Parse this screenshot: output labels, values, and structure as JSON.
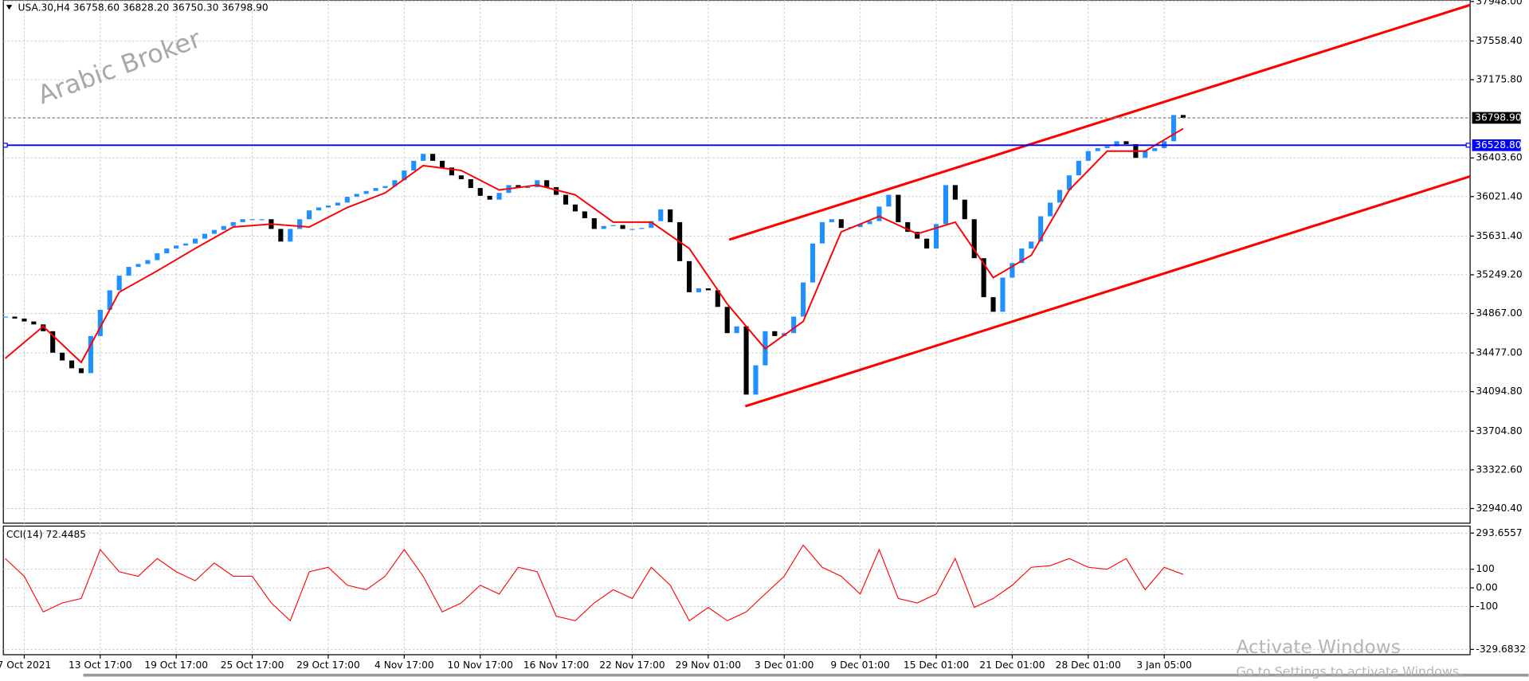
{
  "chart_data": [
    {
      "type": "candlestick",
      "title": "USA.30,H4  36758.60 36828.20 36750.30 36798.90",
      "watermark": "Arabic Broker",
      "categories": [
        null,
        null,
        "7 Oct 2021",
        null,
        null,
        null,
        null,
        null,
        null,
        null,
        "13 Oct 17:00",
        null,
        null,
        null,
        null,
        null,
        null,
        null,
        "19 Oct 17:00",
        null,
        null,
        null,
        null,
        null,
        null,
        null,
        "25 Oct 17:00",
        null,
        null,
        null,
        null,
        null,
        null,
        null,
        "29 Oct 17:00",
        null,
        null,
        null,
        null,
        null,
        null,
        null,
        "4 Nov 17:00",
        null,
        null,
        null,
        null,
        null,
        null,
        null,
        "10 Nov 17:00",
        null,
        null,
        null,
        null,
        null,
        null,
        null,
        "16 Nov 17:00",
        null,
        null,
        null,
        null,
        null,
        null,
        null,
        "22 Nov 17:00",
        null,
        null,
        null,
        null,
        null,
        null,
        null,
        "29 Nov 01:00",
        null,
        null,
        null,
        null,
        null,
        null,
        null,
        "3 Dec 01:00",
        null,
        null,
        null,
        null,
        null,
        null,
        null,
        "9 Dec 01:00",
        null,
        null,
        null,
        null,
        null,
        null,
        null,
        "15 Dec 01:00",
        null,
        null,
        null,
        null,
        null,
        null,
        null,
        "21 Dec 01:00",
        null,
        null,
        null,
        null,
        null,
        null,
        null,
        "28 Dec 01:00",
        null,
        null,
        null,
        null,
        null,
        null,
        null,
        "3 Jan 05:00",
        null,
        null
      ],
      "close": [
        34836,
        34817,
        34788,
        34759,
        34692,
        34480,
        34403,
        34326,
        34278,
        34644,
        34903,
        35096,
        35240,
        35327,
        35356,
        35394,
        35461,
        35509,
        35538,
        35558,
        35606,
        35654,
        35692,
        35731,
        35769,
        35798,
        35798,
        35798,
        35702,
        35577,
        35702,
        35798,
        35885,
        35914,
        35933,
        35962,
        36019,
        36048,
        36077,
        36106,
        36125,
        36183,
        36279,
        36375,
        36443,
        36375,
        36308,
        36231,
        36193,
        36106,
        36029,
        35991,
        36058,
        36135,
        36106,
        36115,
        36183,
        36115,
        36039,
        35943,
        35875,
        35808,
        35702,
        35731,
        35740,
        35702,
        35702,
        35712,
        35779,
        35895,
        35769,
        35384,
        35077,
        35115,
        35096,
        34932,
        34673,
        34740,
        34066,
        34355,
        34692,
        34644,
        34673,
        34836,
        35173,
        35558,
        35769,
        35798,
        35712,
        35721,
        35750,
        35779,
        35923,
        36039,
        35769,
        35673,
        35606,
        35509,
        35750,
        36135,
        35991,
        35798,
        35413,
        35028,
        34884,
        35221,
        35365,
        35509,
        35577,
        35827,
        35962,
        36087,
        36231,
        36375,
        36471,
        36500,
        36519,
        36568,
        36539,
        36404,
        36471,
        36500,
        36568,
        36827,
        36798.9
      ],
      "up_color": "#1e90ff",
      "down_color": "#000000",
      "ma": {
        "color": "#ff0000",
        "x": [
          0,
          4,
          8,
          12,
          16,
          20,
          24,
          28,
          32,
          36,
          40,
          44,
          48,
          52,
          56,
          60,
          64,
          68,
          72,
          76,
          80,
          84,
          88,
          92,
          96,
          100,
          104,
          108,
          112,
          116,
          120,
          124
        ],
        "values": [
          34423,
          34740,
          34384,
          35077,
          35288,
          35509,
          35721,
          35750,
          35721,
          35914,
          36058,
          36327,
          36279,
          36087,
          36135,
          36039,
          35769,
          35769,
          35509,
          34961,
          34519,
          34788,
          35673,
          35827,
          35654,
          35769,
          35221,
          35442,
          36087,
          36471,
          36471,
          36693
        ]
      },
      "trendlines": [
        {
          "color": "#ff0000",
          "x": [
            76.2,
            154.2
          ],
          "values": [
            35596,
            37914
          ]
        },
        {
          "color": "#ff0000",
          "x": [
            77.9,
            154.2
          ],
          "values": [
            33951,
            36221
          ]
        }
      ],
      "hlines": [
        {
          "value": 36798.9,
          "label": "36798.90",
          "color": "#808080"
        },
        {
          "value": 36528.8,
          "label": "36528.80",
          "color": "#0000ff"
        }
      ],
      "xlim": [
        -0.2,
        154.2
      ],
      "ylim": [
        32796,
        37963
      ],
      "yticks": [
        {
          "value": 37948,
          "label": "37948.00"
        },
        {
          "value": 37558.4,
          "label": "37558.40"
        },
        {
          "value": 37175.8,
          "label": "37175.80"
        },
        {
          "value": 36403.6,
          "label": "36403.60"
        },
        {
          "value": 36021.4,
          "label": "36021.40"
        },
        {
          "value": 35631.4,
          "label": "35631.40"
        },
        {
          "value": 35249.2,
          "label": "35249.20"
        },
        {
          "value": 34867,
          "label": "34867.00"
        },
        {
          "value": 34477,
          "label": "34477.00"
        },
        {
          "value": 34094.8,
          "label": "34094.80"
        },
        {
          "value": 33704.8,
          "label": "33704.80"
        },
        {
          "value": 33322.6,
          "label": "33322.60"
        },
        {
          "value": 32940.4,
          "label": "32940.40"
        }
      ],
      "grid": true
    },
    {
      "type": "line",
      "title": "CCI(14) 72.4485",
      "color": "#ff0000",
      "x": [
        0,
        2,
        4,
        6,
        8,
        10,
        12,
        14,
        16,
        18,
        20,
        22,
        24,
        26,
        28,
        30,
        32,
        34,
        36,
        38,
        40,
        42,
        44,
        46,
        48,
        50,
        52,
        54,
        56,
        58,
        60,
        62,
        64,
        66,
        68,
        70,
        72,
        74,
        76,
        78,
        80,
        82,
        84,
        86,
        88,
        90,
        92,
        94,
        96,
        98,
        100,
        102,
        104,
        106,
        108,
        110,
        112,
        114,
        116,
        118,
        120,
        122,
        124
      ],
      "values": [
        157,
        62,
        -129,
        -81,
        -57,
        205,
        86,
        62,
        157,
        86,
        38,
        133,
        62,
        62,
        -81,
        -176,
        86,
        110,
        14,
        -10,
        62,
        205,
        62,
        -129,
        -81,
        14,
        -33,
        110,
        86,
        -152,
        -176,
        -81,
        -10,
        -57,
        110,
        14,
        -176,
        -105,
        -176,
        -129,
        -33,
        62,
        229,
        110,
        62,
        -33,
        205,
        -57,
        -81,
        -33,
        157,
        -105,
        -57,
        14,
        110,
        119,
        157,
        110,
        100,
        157,
        -10,
        110,
        72
      ],
      "xlim": [
        -0.2,
        154.2
      ],
      "ylim": [
        -358,
        331
      ],
      "yticks": [
        293.6557,
        100,
        {
          "value": 0,
          "label": "0.00"
        },
        -100,
        -329.6832
      ],
      "grid": true
    }
  ],
  "overlay": {
    "line1": "Activate Windows",
    "line2": "Go to Settings to activate Windows."
  }
}
